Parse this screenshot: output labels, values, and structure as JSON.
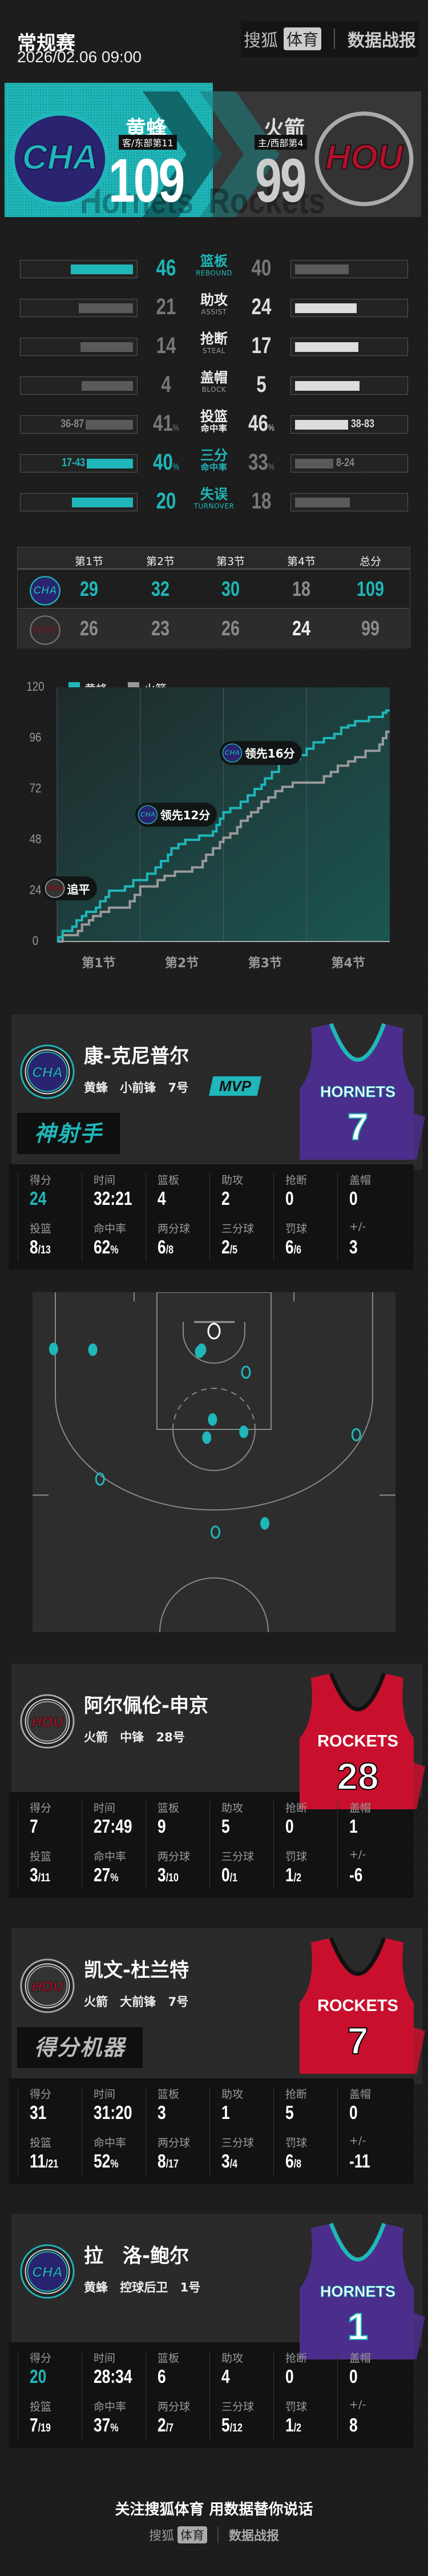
{
  "header": {
    "title": "常规赛",
    "datetime": "2026/02.06 09:00",
    "brand": {
      "sohu": "搜狐",
      "sports": "体育",
      "report": "数据战报"
    }
  },
  "colors": {
    "hornets": "#1fb7b9",
    "hornets_jersey": "#4b2e8c",
    "rockets": "#c8102e",
    "loser": "#777777",
    "winner_light": "#dddddd",
    "background": "#1b1b1b"
  },
  "teams": {
    "away": {
      "name": "黄蜂",
      "abbr": "CHA",
      "info": "客/东部第11",
      "score": "109",
      "watermark": "Hornets"
    },
    "home": {
      "name": "火箭",
      "abbr": "HOU",
      "info": "主/西部第4",
      "score": "99",
      "watermark": "Rockets"
    }
  },
  "team_stats": [
    {
      "cn": "篮板",
      "en": "REBOUND",
      "left": 46,
      "right": 40,
      "leader": "left",
      "pct": false
    },
    {
      "cn": "助攻",
      "en": "ASSIST",
      "left": 21,
      "right": 24,
      "leader": "right",
      "pct": false
    },
    {
      "cn": "抢断",
      "en": "STEAL",
      "left": 14,
      "right": 17,
      "leader": "right",
      "pct": false
    },
    {
      "cn": "盖帽",
      "en": "BLOCK",
      "left": 4,
      "right": 5,
      "leader": "right",
      "pct": false
    },
    {
      "cn": "投篮",
      "en": "命中率",
      "left": 41,
      "right": 46,
      "leader": "right",
      "pct": true,
      "left_detail": "36-87",
      "right_detail": "38-83"
    },
    {
      "cn": "三分",
      "en": "命中率",
      "left": 40,
      "right": 33,
      "leader": "left",
      "pct": true,
      "left_detail": "17-43",
      "right_detail": "8-24"
    },
    {
      "cn": "失误",
      "en": "TURNOVER",
      "left": 20,
      "right": 18,
      "leader": "left",
      "pct": false
    }
  ],
  "quarters": {
    "headers": [
      "第1节",
      "第2节",
      "第3节",
      "第4节",
      "总分"
    ],
    "rows": [
      {
        "team": "CHA",
        "scores": [
          "29",
          "32",
          "30",
          "18",
          "109"
        ],
        "highlight": [
          true,
          true,
          true,
          false,
          true
        ]
      },
      {
        "team": "HOU",
        "scores": [
          "26",
          "23",
          "26",
          "24",
          "99"
        ],
        "highlight": [
          false,
          false,
          false,
          true,
          false
        ]
      }
    ]
  },
  "chart_data": {
    "type": "line",
    "legend": [
      "黄蜂",
      "火箭"
    ],
    "ylim": [
      0,
      120
    ],
    "yticks": [
      "0",
      "24",
      "48",
      "72",
      "96",
      "120"
    ],
    "xticks": [
      "第1节",
      "第2节",
      "第3节",
      "第4节"
    ],
    "xlim_minutes": [
      0,
      48
    ],
    "series": [
      {
        "name": "黄蜂",
        "color": "#1fb7b9",
        "points": [
          [
            0,
            0
          ],
          [
            0.2,
            2
          ],
          [
            0.8,
            5
          ],
          [
            2.2,
            7
          ],
          [
            2.8,
            10
          ],
          [
            3.6,
            12
          ],
          [
            4.2,
            14
          ],
          [
            5.6,
            16
          ],
          [
            6.2,
            19
          ],
          [
            7,
            21
          ],
          [
            7.5,
            24
          ],
          [
            9.8,
            26
          ],
          [
            11,
            29
          ],
          [
            13,
            32
          ],
          [
            14.2,
            35
          ],
          [
            15,
            38
          ],
          [
            16,
            41
          ],
          [
            16.5,
            44
          ],
          [
            17.5,
            46
          ],
          [
            18.5,
            48
          ],
          [
            20.5,
            50
          ],
          [
            22.5,
            52
          ],
          [
            23,
            55
          ],
          [
            23.5,
            58
          ],
          [
            24,
            61
          ],
          [
            25,
            63
          ],
          [
            26.5,
            66
          ],
          [
            27.5,
            69
          ],
          [
            28.5,
            72
          ],
          [
            29.5,
            74
          ],
          [
            30,
            77
          ],
          [
            31,
            80
          ],
          [
            32,
            84
          ],
          [
            34,
            86
          ],
          [
            35,
            88
          ],
          [
            36,
            91
          ],
          [
            37,
            94
          ],
          [
            38.5,
            96
          ],
          [
            40,
            98
          ],
          [
            41,
            101
          ],
          [
            42,
            102
          ],
          [
            43,
            104
          ],
          [
            45,
            106
          ],
          [
            47,
            108
          ],
          [
            47.5,
            109
          ],
          [
            48,
            109
          ]
        ]
      },
      {
        "name": "火箭",
        "color": "#9a9a9a",
        "points": [
          [
            0,
            0
          ],
          [
            0.8,
            3
          ],
          [
            3,
            5
          ],
          [
            3.6,
            8
          ],
          [
            4.6,
            10
          ],
          [
            5.2,
            12
          ],
          [
            6.3,
            14
          ],
          [
            7.5,
            16
          ],
          [
            10.5,
            19
          ],
          [
            11.2,
            22
          ],
          [
            12,
            26
          ],
          [
            14.5,
            29
          ],
          [
            15.5,
            31
          ],
          [
            17,
            33
          ],
          [
            19.5,
            35
          ],
          [
            21,
            38
          ],
          [
            21.5,
            41
          ],
          [
            22.5,
            44
          ],
          [
            23.5,
            47
          ],
          [
            24,
            49
          ],
          [
            25,
            51
          ],
          [
            26,
            54
          ],
          [
            26.5,
            57
          ],
          [
            27.5,
            59
          ],
          [
            28,
            61
          ],
          [
            29,
            63
          ],
          [
            29.5,
            66
          ],
          [
            30.5,
            68
          ],
          [
            31.5,
            71
          ],
          [
            32.5,
            73
          ],
          [
            34,
            75
          ],
          [
            38.5,
            78
          ],
          [
            39.5,
            80
          ],
          [
            40.5,
            83
          ],
          [
            42,
            85
          ],
          [
            43,
            87
          ],
          [
            44.5,
            90
          ],
          [
            46.5,
            93
          ],
          [
            47,
            96
          ],
          [
            47.5,
            99
          ],
          [
            48,
            99
          ]
        ]
      }
    ],
    "annotations": [
      {
        "team": "HOU",
        "text": "追平",
        "minute": 8.2,
        "score": 25
      },
      {
        "team": "CHA",
        "text": "领先12分",
        "minute": 23.6,
        "score": 60
      },
      {
        "team": "CHA",
        "text": "领先16分",
        "minute": 35.8,
        "score": 89
      }
    ]
  },
  "players": [
    {
      "name": "康-克尼普尔",
      "team": "黄蜂",
      "position": "小前锋",
      "number": "7号",
      "badge": "MVP",
      "tag": "神射手",
      "abbr": "CHA",
      "jersey": {
        "text": "HORNETS",
        "number": "7"
      },
      "labels1": [
        "得分",
        "时间",
        "篮板",
        "助攻",
        "抢断",
        "盖帽"
      ],
      "values1": [
        "24",
        "32:21",
        "4",
        "2",
        "0",
        "0"
      ],
      "labels2": [
        "投篮",
        "命中率",
        "两分球",
        "三分球",
        "罚球",
        "+/-"
      ],
      "values2": [
        "8/13",
        "62%",
        "6/8",
        "2/5",
        "6/6",
        "3"
      ]
    },
    {
      "name": "阿尔佩伦-申京",
      "team": "火箭",
      "position": "中锋",
      "number": "28号",
      "abbr": "HOU",
      "jersey": {
        "text": "ROCKETS",
        "number": "28"
      },
      "labels1": [
        "得分",
        "时间",
        "篮板",
        "助攻",
        "抢断",
        "盖帽"
      ],
      "values1": [
        "7",
        "27:49",
        "9",
        "5",
        "0",
        "1"
      ],
      "labels2": [
        "投篮",
        "命中率",
        "两分球",
        "三分球",
        "罚球",
        "+/-"
      ],
      "values2": [
        "3/11",
        "27%",
        "3/10",
        "0/1",
        "1/2",
        "-6"
      ]
    },
    {
      "name": "凯文-杜兰特",
      "team": "火箭",
      "position": "大前锋",
      "number": "7号",
      "tag": "得分机器",
      "abbr": "HOU",
      "jersey": {
        "text": "ROCKETS",
        "number": "7"
      },
      "labels1": [
        "得分",
        "时间",
        "篮板",
        "助攻",
        "抢断",
        "盖帽"
      ],
      "values1": [
        "31",
        "31:20",
        "3",
        "1",
        "5",
        "0"
      ],
      "labels2": [
        "投篮",
        "命中率",
        "两分球",
        "三分球",
        "罚球",
        "+/-"
      ],
      "values2": [
        "11/21",
        "52%",
        "8/17",
        "3/4",
        "6/8",
        "-11"
      ]
    },
    {
      "name": "拉　洛-鲍尔",
      "team": "黄蜂",
      "position": "控球后卫",
      "number": "1号",
      "abbr": "CHA",
      "jersey": {
        "text": "HORNETS",
        "number": "1"
      },
      "labels1": [
        "得分",
        "时间",
        "篮板",
        "助攻",
        "抢断",
        "盖帽"
      ],
      "values1": [
        "20",
        "28:34",
        "6",
        "4",
        "0",
        "0"
      ],
      "labels2": [
        "投篮",
        "命中率",
        "两分球",
        "三分球",
        "罚球",
        "+/-"
      ],
      "values2": [
        "7/19",
        "37%",
        "2/7",
        "5/12",
        "1/2",
        "8"
      ]
    }
  ],
  "shot_chart": {
    "units": "feet from left sideline / baseline",
    "made": [
      [
        2.9,
        7.8
      ],
      [
        8.3,
        7.9
      ],
      [
        23.3,
        7.9
      ],
      [
        23.0,
        8.2
      ],
      [
        24.8,
        17.5
      ],
      [
        29.1,
        19.2
      ],
      [
        24.0,
        20.0
      ],
      [
        32.0,
        31.8
      ]
    ],
    "missed": [
      [
        29.4,
        11.0
      ],
      [
        44.6,
        19.6
      ],
      [
        9.3,
        25.7
      ],
      [
        25.2,
        33.0
      ]
    ]
  },
  "footer": {
    "slogan": "关注搜狐体育 用数据替你说话",
    "sohu": "搜狐",
    "sports": "体育",
    "report": "数据战报"
  }
}
